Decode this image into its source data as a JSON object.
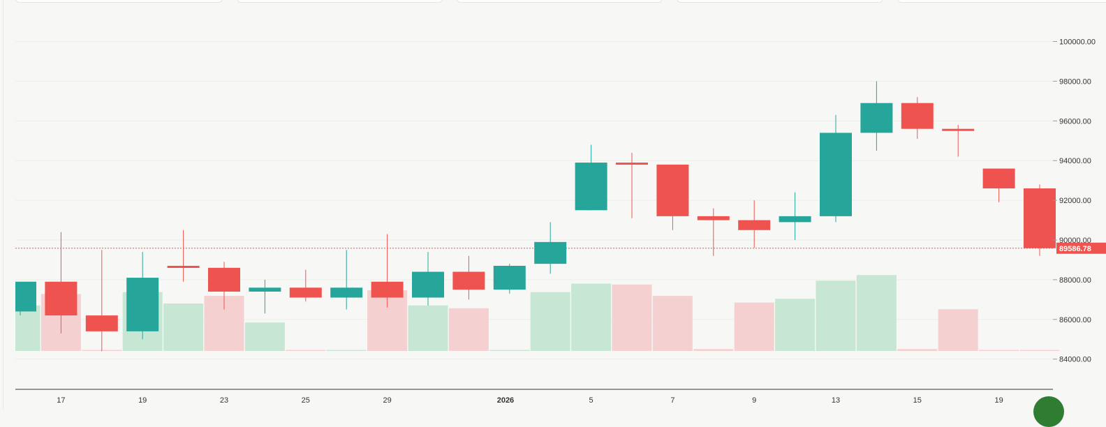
{
  "colors": {
    "up": "#26a69a",
    "down": "#ef5350",
    "up_volume": "#c8e6d4",
    "down_volume": "#f5d0d0",
    "grid": "#eceeea",
    "background": "#f7f8f5"
  },
  "chart_data": {
    "type": "candlestick",
    "title": "",
    "ylim": [
      83500,
      101000
    ],
    "y_ticks": [
      "84000.00",
      "86000.00",
      "88000.00",
      "90000.00",
      "92000.00",
      "94000.00",
      "96000.00",
      "98000.00",
      "100000.00"
    ],
    "x_ticks": [
      {
        "label": "17",
        "index": 1,
        "bold": false
      },
      {
        "label": "19",
        "index": 3,
        "bold": false
      },
      {
        "label": "23",
        "index": 5,
        "bold": false
      },
      {
        "label": "25",
        "index": 7,
        "bold": false
      },
      {
        "label": "29",
        "index": 9,
        "bold": false
      },
      {
        "label": "2026",
        "index": 11.9,
        "bold": true
      },
      {
        "label": "5",
        "index": 14,
        "bold": false
      },
      {
        "label": "7",
        "index": 16,
        "bold": false
      },
      {
        "label": "9",
        "index": 18,
        "bold": false
      },
      {
        "label": "13",
        "index": 20,
        "bold": false
      },
      {
        "label": "15",
        "index": 22,
        "bold": false
      },
      {
        "label": "19",
        "index": 24,
        "bold": false
      }
    ],
    "last_price": 89586.78,
    "last_price_label": "89586.78",
    "candles": [
      {
        "open": 86400,
        "high": 87900,
        "low": 86200,
        "close": 87900
      },
      {
        "open": 87900,
        "high": 90400,
        "low": 85300,
        "close": 86200
      },
      {
        "open": 86200,
        "high": 89500,
        "low": 84400,
        "close": 85400
      },
      {
        "open": 85400,
        "high": 89400,
        "low": 85000,
        "close": 88100
      },
      {
        "open": 88700,
        "high": 90500,
        "low": 87900,
        "close": 88600
      },
      {
        "open": 88600,
        "high": 88900,
        "low": 86500,
        "close": 87400
      },
      {
        "open": 87400,
        "high": 88000,
        "low": 86300,
        "close": 87600
      },
      {
        "open": 87600,
        "high": 88500,
        "low": 86900,
        "close": 87100
      },
      {
        "open": 87100,
        "high": 89500,
        "low": 86500,
        "close": 87600
      },
      {
        "open": 87900,
        "high": 90300,
        "low": 86600,
        "close": 87100
      },
      {
        "open": 87100,
        "high": 89400,
        "low": 86700,
        "close": 88400
      },
      {
        "open": 88400,
        "high": 89200,
        "low": 87000,
        "close": 87500
      },
      {
        "open": 87500,
        "high": 88800,
        "low": 87300,
        "close": 88700
      },
      {
        "open": 88800,
        "high": 90900,
        "low": 88300,
        "close": 89900
      },
      {
        "open": 91500,
        "high": 94800,
        "low": 91500,
        "close": 93900
      },
      {
        "open": 93900,
        "high": 94400,
        "low": 91100,
        "close": 93800
      },
      {
        "open": 93800,
        "high": 93800,
        "low": 90500,
        "close": 91200
      },
      {
        "open": 91200,
        "high": 91600,
        "low": 89200,
        "close": 91000
      },
      {
        "open": 91000,
        "high": 92000,
        "low": 89600,
        "close": 90500
      },
      {
        "open": 90900,
        "high": 92400,
        "low": 90000,
        "close": 91200
      },
      {
        "open": 91200,
        "high": 96300,
        "low": 90900,
        "close": 95400
      },
      {
        "open": 95400,
        "high": 98000,
        "low": 94500,
        "close": 96900
      },
      {
        "open": 96900,
        "high": 97200,
        "low": 95100,
        "close": 95600
      },
      {
        "open": 95600,
        "high": 95800,
        "low": 94200,
        "close": 95500
      },
      {
        "open": 93600,
        "high": 93600,
        "low": 91900,
        "close": 92600
      },
      {
        "open": 92600,
        "high": 92800,
        "low": 89200,
        "close": 89586.78
      }
    ],
    "volume": [
      {
        "value": 0.48,
        "dir": "up"
      },
      {
        "value": 0.6,
        "dir": "down"
      },
      {
        "value": 0.01,
        "dir": "down"
      },
      {
        "value": 0.62,
        "dir": "up"
      },
      {
        "value": 0.5,
        "dir": "up"
      },
      {
        "value": 0.58,
        "dir": "down"
      },
      {
        "value": 0.3,
        "dir": "up"
      },
      {
        "value": 0.0,
        "dir": "down"
      },
      {
        "value": 0.01,
        "dir": "up"
      },
      {
        "value": 0.64,
        "dir": "down"
      },
      {
        "value": 0.48,
        "dir": "up"
      },
      {
        "value": 0.45,
        "dir": "down"
      },
      {
        "value": 0.01,
        "dir": "up"
      },
      {
        "value": 0.62,
        "dir": "up"
      },
      {
        "value": 0.71,
        "dir": "up"
      },
      {
        "value": 0.7,
        "dir": "down"
      },
      {
        "value": 0.58,
        "dir": "down"
      },
      {
        "value": 0.02,
        "dir": "down"
      },
      {
        "value": 0.51,
        "dir": "down"
      },
      {
        "value": 0.55,
        "dir": "up"
      },
      {
        "value": 0.74,
        "dir": "up"
      },
      {
        "value": 0.8,
        "dir": "up"
      },
      {
        "value": 0.02,
        "dir": "down"
      },
      {
        "value": 0.44,
        "dir": "down"
      },
      {
        "value": 0.01,
        "dir": "down"
      },
      {
        "value": 0.01,
        "dir": "down"
      }
    ]
  }
}
